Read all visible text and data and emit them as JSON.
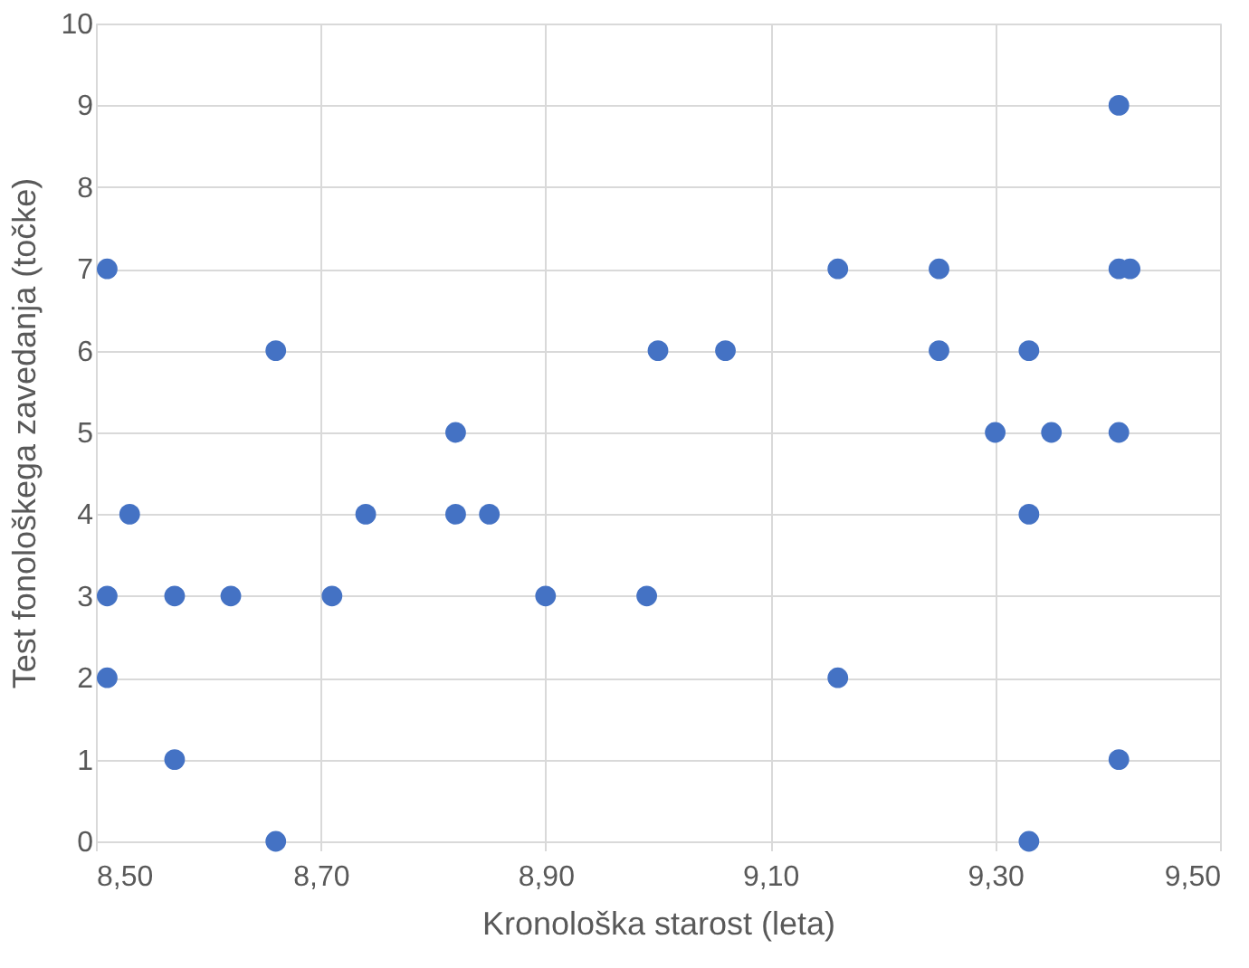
{
  "chart_data": {
    "type": "scatter",
    "xlabel": "Kronološka starost (leta)",
    "ylabel": "Test fonološkega zavedanja (točke)",
    "x": [
      8.51,
      8.66,
      8.82,
      8.53,
      8.74,
      8.82,
      8.85,
      8.51,
      8.57,
      8.62,
      8.71,
      8.9,
      8.99,
      8.51,
      8.57,
      8.66,
      9.0,
      9.06,
      9.16,
      9.25,
      9.25,
      9.33,
      9.3,
      9.35,
      9.41,
      9.33,
      9.16,
      9.41,
      9.33,
      9.41,
      9.41,
      9.42
    ],
    "values": [
      7,
      6,
      5,
      4,
      4,
      4,
      4,
      3,
      3,
      3,
      3,
      3,
      3,
      2,
      1,
      0,
      6,
      6,
      7,
      7,
      6,
      6,
      5,
      5,
      5,
      4,
      2,
      1,
      0,
      9,
      7,
      7
    ],
    "color": "#4472c4",
    "marker": "circle",
    "xlim": [
      8.5,
      9.5
    ],
    "xticks": [
      {
        "value": 8.5,
        "label": "8,50"
      },
      {
        "value": 8.7,
        "label": "8,70"
      },
      {
        "value": 8.9,
        "label": "8,90"
      },
      {
        "value": 9.1,
        "label": "9,10"
      },
      {
        "value": 9.3,
        "label": "9,30"
      },
      {
        "value": 9.5,
        "label": "9,50"
      }
    ],
    "ylim": [
      0,
      10
    ],
    "yticks": [
      0,
      1,
      2,
      3,
      4,
      5,
      6,
      7,
      8,
      9,
      10
    ],
    "grid": true
  }
}
